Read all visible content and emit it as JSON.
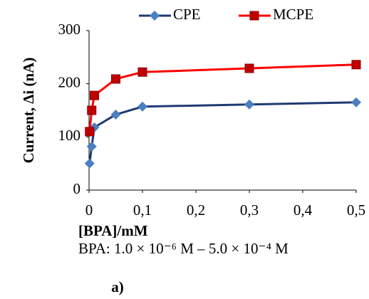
{
  "chart_data": {
    "type": "line",
    "x_label": "[BPA]/mM",
    "y_label": "Current, Δi  (nA)",
    "note": "BPA: 1.0 × 10⁻⁶ M – 5.0 × 10⁻⁴ M",
    "panel_label": "a)",
    "x": [
      0.001,
      0.005,
      0.01,
      0.05,
      0.1,
      0.3,
      0.5
    ],
    "series": [
      {
        "name": "CPE",
        "color": "#1f3a73",
        "marker_color": "#4a7fc1",
        "marker": "diamond",
        "values": [
          50,
          82,
          118,
          142,
          157,
          161,
          165
        ]
      },
      {
        "name": "MCPE",
        "color": "#ff0000",
        "marker_color": "#c00000",
        "marker": "square",
        "values": [
          110,
          150,
          178,
          209,
          222,
          229,
          236
        ]
      }
    ],
    "xlim": [
      0,
      0.5
    ],
    "xticks": [
      0,
      {
        "value": 0.1,
        "label": "0,1"
      },
      {
        "value": 0.2,
        "label": "0,2"
      },
      {
        "value": 0.3,
        "label": "0,3"
      },
      {
        "value": 0.4,
        "label": "0,4"
      },
      {
        "value": 0.5,
        "label": "0,5"
      }
    ],
    "ylim": [
      0,
      300
    ],
    "yticks": [
      0,
      100,
      200,
      300
    ],
    "legend": "top"
  }
}
